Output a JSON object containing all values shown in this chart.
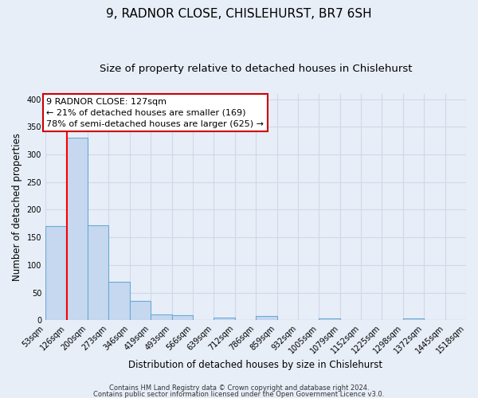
{
  "title": "9, RADNOR CLOSE, CHISLEHURST, BR7 6SH",
  "subtitle": "Size of property relative to detached houses in Chislehurst",
  "xlabel": "Distribution of detached houses by size in Chislehurst",
  "ylabel": "Number of detached properties",
  "bin_edges": [
    53,
    126,
    200,
    273,
    346,
    419,
    493,
    566,
    639,
    712,
    786,
    859,
    932,
    1005,
    1079,
    1152,
    1225,
    1298,
    1372,
    1445,
    1518
  ],
  "bin_labels": [
    "53sqm",
    "126sqm",
    "200sqm",
    "273sqm",
    "346sqm",
    "419sqm",
    "493sqm",
    "566sqm",
    "639sqm",
    "712sqm",
    "786sqm",
    "859sqm",
    "932sqm",
    "1005sqm",
    "1079sqm",
    "1152sqm",
    "1225sqm",
    "1298sqm",
    "1372sqm",
    "1445sqm",
    "1518sqm"
  ],
  "counts": [
    170,
    330,
    172,
    69,
    35,
    11,
    9,
    0,
    5,
    0,
    8,
    0,
    0,
    3,
    0,
    0,
    0,
    3,
    0,
    0
  ],
  "bar_color": "#c5d8f0",
  "bar_edge_color": "#6aaad4",
  "red_line_x": 127,
  "annotation_text": "9 RADNOR CLOSE: 127sqm\n← 21% of detached houses are smaller (169)\n78% of semi-detached houses are larger (625) →",
  "annotation_box_color": "#ffffff",
  "annotation_box_edge": "#cc0000",
  "ylim_max": 410,
  "yticks": [
    0,
    50,
    100,
    150,
    200,
    250,
    300,
    350,
    400
  ],
  "footer1": "Contains HM Land Registry data © Crown copyright and database right 2024.",
  "footer2": "Contains public sector information licensed under the Open Government Licence v3.0.",
  "bg_color": "#e8eef8",
  "grid_color": "#d0d8e8",
  "title_fontsize": 11,
  "subtitle_fontsize": 9.5,
  "xlabel_fontsize": 8.5,
  "ylabel_fontsize": 8.5,
  "tick_fontsize": 7,
  "annot_fontsize": 8,
  "footer_fontsize": 6
}
